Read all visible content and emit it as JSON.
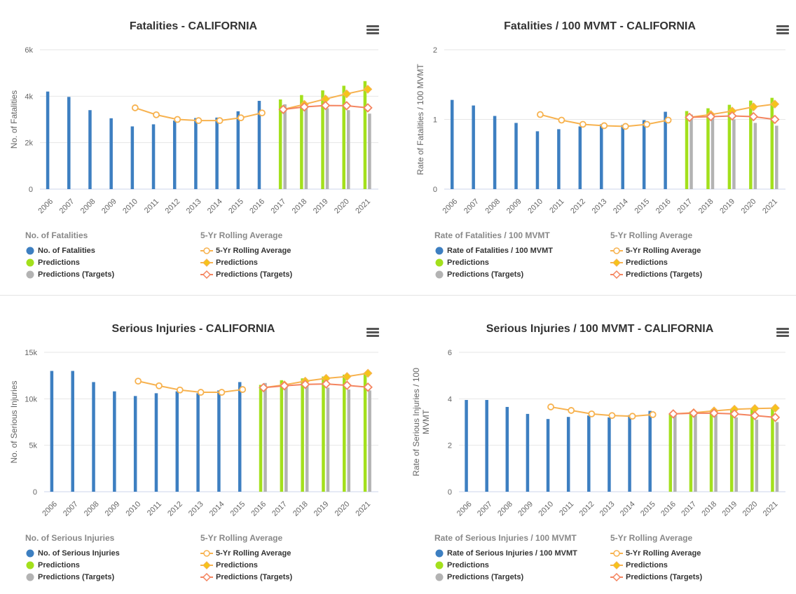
{
  "colors": {
    "bar_actual": "#3d7fc1",
    "bar_prediction": "#a3e01c",
    "bar_target": "#b3b3b3",
    "rolling_line": "#f7b24f",
    "prediction_line": "#f7b24f",
    "prediction_marker": "#f5c518",
    "target_line": "#f4845f",
    "grid": "#e6e6e6",
    "menu": "#555555"
  },
  "chart_data": [
    {
      "type": "bar",
      "title": "Fatalities - CALIFORNIA",
      "xlabel": "",
      "ylabel": "No. of Fatalities",
      "ylim": [
        0,
        6000
      ],
      "yticks": [
        0,
        2000,
        4000,
        6000
      ],
      "ytick_labels": [
        "0",
        "2k",
        "4k",
        "6k"
      ],
      "categories": [
        "2006",
        "2007",
        "2008",
        "2009",
        "2010",
        "2011",
        "2012",
        "2013",
        "2014",
        "2015",
        "2016",
        "2017",
        "2018",
        "2019",
        "2020",
        "2021"
      ],
      "legend_left": {
        "title": "No. of Fatalities",
        "items": [
          "No. of Fatalities",
          "Predictions",
          "Predictions (Targets)"
        ]
      },
      "legend_right": {
        "title": "5-Yr Rolling Average",
        "items": [
          "5-Yr Rolling Average",
          "Predictions",
          "Predictions (Targets)"
        ]
      },
      "series": [
        {
          "name": "No. of Fatalities",
          "kind": "bar",
          "values": [
            4200,
            3970,
            3400,
            3050,
            2700,
            2790,
            2950,
            3060,
            3080,
            3350,
            3800,
            null,
            null,
            null,
            null,
            null
          ]
        },
        {
          "name": "Predictions",
          "kind": "bar",
          "values": [
            null,
            null,
            null,
            null,
            null,
            null,
            null,
            null,
            null,
            null,
            null,
            3860,
            4050,
            4250,
            4450,
            4650
          ]
        },
        {
          "name": "Predictions (Targets)",
          "kind": "bar",
          "values": [
            null,
            null,
            null,
            null,
            null,
            null,
            null,
            null,
            null,
            null,
            null,
            3650,
            3550,
            3480,
            3400,
            3250
          ]
        },
        {
          "name": "5-Yr Rolling Average",
          "kind": "line",
          "values": [
            null,
            null,
            null,
            null,
            3500,
            3200,
            3000,
            2950,
            2950,
            3070,
            3280,
            null,
            null,
            null,
            null,
            null
          ]
        },
        {
          "name": "Predictions",
          "kind": "line",
          "values": [
            null,
            null,
            null,
            null,
            null,
            null,
            null,
            null,
            null,
            null,
            null,
            3430,
            3650,
            3880,
            4100,
            4300
          ]
        },
        {
          "name": "Predictions (Targets)",
          "kind": "line",
          "values": [
            null,
            null,
            null,
            null,
            null,
            null,
            null,
            null,
            null,
            null,
            null,
            3430,
            3540,
            3600,
            3590,
            3500
          ]
        }
      ]
    },
    {
      "type": "bar",
      "title": "Fatalities / 100 MVMT - CALIFORNIA",
      "xlabel": "",
      "ylabel": "Rate of Fatalities / 100 MVMT",
      "ylim": [
        0,
        2
      ],
      "yticks": [
        0,
        1,
        2
      ],
      "ytick_labels": [
        "0",
        "1",
        "2"
      ],
      "categories": [
        "2006",
        "2007",
        "2008",
        "2009",
        "2010",
        "2011",
        "2012",
        "2013",
        "2014",
        "2015",
        "2016",
        "2017",
        "2018",
        "2019",
        "2020",
        "2021"
      ],
      "legend_left": {
        "title": "Rate of Fatalities / 100 MVMT",
        "items": [
          "Rate of Fatalities / 100 MVMT",
          "Predictions",
          "Predictions (Targets)"
        ]
      },
      "legend_right": {
        "title": "5-Yr Rolling Average",
        "items": [
          "5-Yr Rolling Average",
          "Predictions",
          "Predictions (Targets)"
        ]
      },
      "series": [
        {
          "name": "Rate of Fatalities / 100 MVMT",
          "kind": "bar",
          "values": [
            1.28,
            1.2,
            1.05,
            0.95,
            0.83,
            0.86,
            0.9,
            0.93,
            0.92,
            0.99,
            1.11,
            null,
            null,
            null,
            null,
            null
          ]
        },
        {
          "name": "Predictions",
          "kind": "bar",
          "values": [
            null,
            null,
            null,
            null,
            null,
            null,
            null,
            null,
            null,
            null,
            null,
            1.12,
            1.16,
            1.21,
            1.27,
            1.31
          ]
        },
        {
          "name": "Predictions (Targets)",
          "kind": "bar",
          "values": [
            null,
            null,
            null,
            null,
            null,
            null,
            null,
            null,
            null,
            null,
            null,
            1.07,
            1.05,
            1.0,
            0.95,
            0.91
          ]
        },
        {
          "name": "5-Yr Rolling Average",
          "kind": "line",
          "values": [
            null,
            null,
            null,
            null,
            1.07,
            0.99,
            0.93,
            0.91,
            0.9,
            0.93,
            0.99,
            null,
            null,
            null,
            null,
            null
          ]
        },
        {
          "name": "Predictions",
          "kind": "line",
          "values": [
            null,
            null,
            null,
            null,
            null,
            null,
            null,
            null,
            null,
            null,
            null,
            1.03,
            1.07,
            1.12,
            1.18,
            1.22
          ]
        },
        {
          "name": "Predictions (Targets)",
          "kind": "line",
          "values": [
            null,
            null,
            null,
            null,
            null,
            null,
            null,
            null,
            null,
            null,
            null,
            1.03,
            1.04,
            1.05,
            1.04,
            1.0
          ]
        }
      ]
    },
    {
      "type": "bar",
      "title": "Serious Injuries - CALIFORNIA",
      "xlabel": "",
      "ylabel": "No. of Serious Injuries",
      "ylim": [
        0,
        15000
      ],
      "yticks": [
        0,
        5000,
        10000,
        15000
      ],
      "ytick_labels": [
        "0",
        "5k",
        "10k",
        "15k"
      ],
      "categories": [
        "2006",
        "2007",
        "2008",
        "2009",
        "2010",
        "2011",
        "2012",
        "2013",
        "2014",
        "2015",
        "2016",
        "2017",
        "2018",
        "2019",
        "2020",
        "2021"
      ],
      "legend_left": {
        "title": "No. of Serious Injuries",
        "items": [
          "No. of Serious Injuries",
          "Predictions",
          "Predictions (Targets)"
        ]
      },
      "legend_right": {
        "title": "5-Yr Rolling Average",
        "items": [
          "5-Yr Rolling Average",
          "Predictions",
          "Predictions (Targets)"
        ]
      },
      "series": [
        {
          "name": "No. of Serious Injuries",
          "kind": "bar",
          "values": [
            13000,
            13000,
            11800,
            10800,
            10300,
            10600,
            10800,
            10600,
            10900,
            11800,
            null,
            null,
            null,
            null,
            null,
            null
          ]
        },
        {
          "name": "Predictions",
          "kind": "bar",
          "values": [
            null,
            null,
            null,
            null,
            null,
            null,
            null,
            null,
            null,
            null,
            11500,
            12000,
            12200,
            12400,
            12600,
            12800
          ]
        },
        {
          "name": "Predictions (Targets)",
          "kind": "bar",
          "values": [
            null,
            null,
            null,
            null,
            null,
            null,
            null,
            null,
            null,
            null,
            11700,
            11500,
            11400,
            11200,
            11000,
            10900
          ]
        },
        {
          "name": "5-Yr Rolling Average",
          "kind": "line",
          "values": [
            null,
            null,
            null,
            null,
            11900,
            11400,
            10950,
            10700,
            10700,
            11000,
            null,
            null,
            null,
            null,
            null,
            null
          ]
        },
        {
          "name": "Predictions",
          "kind": "line",
          "values": [
            null,
            null,
            null,
            null,
            null,
            null,
            null,
            null,
            null,
            null,
            11200,
            11500,
            11900,
            12200,
            12400,
            12750
          ]
        },
        {
          "name": "Predictions (Targets)",
          "kind": "line",
          "values": [
            null,
            null,
            null,
            null,
            null,
            null,
            null,
            null,
            null,
            null,
            11200,
            11400,
            11550,
            11600,
            11450,
            11250
          ]
        }
      ]
    },
    {
      "type": "bar",
      "title": "Serious Injuries / 100 MVMT - CALIFORNIA",
      "xlabel": "",
      "ylabel": "Rate of Serious Injuries / 100 MVMT",
      "ylim": [
        0,
        6
      ],
      "yticks": [
        0,
        2,
        4,
        6
      ],
      "ytick_labels": [
        "0",
        "2",
        "4",
        "6"
      ],
      "categories": [
        "2006",
        "2007",
        "2008",
        "2009",
        "2010",
        "2011",
        "2012",
        "2013",
        "2014",
        "2015",
        "2016",
        "2017",
        "2018",
        "2019",
        "2020",
        "2021"
      ],
      "legend_left": {
        "title": "Rate of Serious Injuries / 100 MVMT",
        "items": [
          "Rate of Serious Injuries / 100 MVMT",
          "Predictions",
          "Predictions (Targets)"
        ]
      },
      "legend_right": {
        "title": "5-Yr Rolling Average",
        "items": [
          "5-Yr Rolling Average",
          "Predictions",
          "Predictions (Targets)"
        ]
      },
      "series": [
        {
          "name": "Rate of Serious Injuries / 100 MVMT",
          "kind": "bar",
          "values": [
            3.95,
            3.95,
            3.65,
            3.35,
            3.13,
            3.22,
            3.28,
            3.2,
            3.3,
            3.48,
            null,
            null,
            null,
            null,
            null,
            null
          ]
        },
        {
          "name": "Predictions",
          "kind": "bar",
          "values": [
            null,
            null,
            null,
            null,
            null,
            null,
            null,
            null,
            null,
            null,
            3.35,
            3.45,
            3.5,
            3.55,
            3.6,
            3.62
          ]
        },
        {
          "name": "Predictions (Targets)",
          "kind": "bar",
          "values": [
            null,
            null,
            null,
            null,
            null,
            null,
            null,
            null,
            null,
            null,
            3.4,
            3.3,
            3.3,
            3.2,
            3.1,
            3.0
          ]
        },
        {
          "name": "5-Yr Rolling Average",
          "kind": "line",
          "values": [
            null,
            null,
            null,
            null,
            3.65,
            3.5,
            3.35,
            3.28,
            3.25,
            3.32,
            null,
            null,
            null,
            null,
            null,
            null
          ]
        },
        {
          "name": "Predictions",
          "kind": "line",
          "values": [
            null,
            null,
            null,
            null,
            null,
            null,
            null,
            null,
            null,
            null,
            3.35,
            3.4,
            3.48,
            3.55,
            3.58,
            3.6
          ]
        },
        {
          "name": "Predictions (Targets)",
          "kind": "line",
          "values": [
            null,
            null,
            null,
            null,
            null,
            null,
            null,
            null,
            null,
            null,
            3.35,
            3.38,
            3.38,
            3.35,
            3.28,
            3.2
          ]
        }
      ]
    }
  ]
}
